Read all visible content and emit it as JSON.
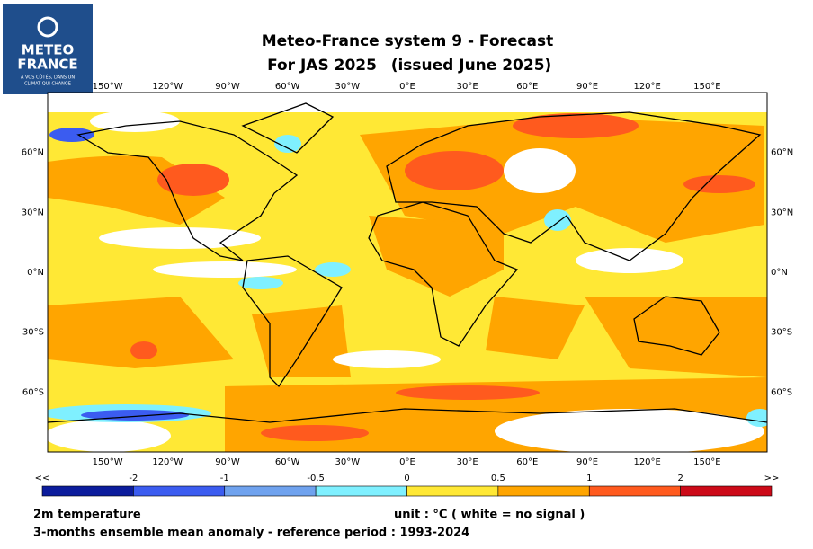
{
  "logo": {
    "line1": "METEO",
    "line2": "FRANCE",
    "tagline1": "À VOS CÔTÉS, DANS UN",
    "tagline2": "CLIMAT QUI CHANGE"
  },
  "title": {
    "line1": "Meteo-France system 9  -  Forecast",
    "line2a": "For JAS 2025",
    "line2b": "(issued June 2025)"
  },
  "map": {
    "lon_labels": [
      "150°W",
      "120°W",
      "90°W",
      "60°W",
      "30°W",
      "0°E",
      "30°E",
      "60°E",
      "90°E",
      "120°E",
      "150°E"
    ],
    "lat_labels": [
      "60°N",
      "30°N",
      "0°N",
      "30°S",
      "60°S"
    ]
  },
  "colorbar": {
    "labels": [
      "<<",
      "-2",
      "-1",
      "-0.5",
      "0",
      "0.5",
      "1",
      "2",
      ">>"
    ],
    "colors": [
      "#0c1c9c",
      "#3b5cf0",
      "#6fa2ee",
      "#7ff0ff",
      "#ffe835",
      "#ffa500",
      "#ff5a1e",
      "#cc0a18"
    ]
  },
  "footer": {
    "variable": "2m temperature",
    "unit": "unit : °C  ( white = no signal )",
    "description": "3-months ensemble mean anomaly - reference period : 1993-2024"
  }
}
